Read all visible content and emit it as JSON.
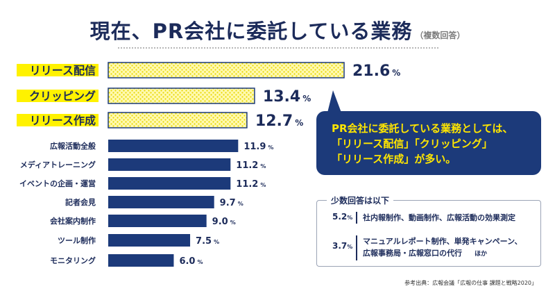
{
  "title": "現在、PR会社に委託している業務",
  "title_note": "（複数回答）",
  "chart_data": {
    "type": "bar",
    "orientation": "horizontal",
    "unit": "%",
    "categories": [
      "リリース配信",
      "クリッピング",
      "リリース作成",
      "広報活動全般",
      "メディアトレーニング",
      "イベントの企画・運営",
      "記者会見",
      "会社案内制作",
      "ツール制作",
      "モニタリング"
    ],
    "values": [
      21.6,
      13.4,
      12.7,
      11.9,
      11.2,
      11.2,
      9.7,
      9.0,
      7.5,
      6.0
    ],
    "value_labels": [
      "21.6",
      "13.4",
      "12.7",
      "11.9",
      "11.2",
      "11.2",
      "9.7",
      "9.0",
      "7.5",
      "6.0"
    ],
    "highlighted": [
      true,
      true,
      true,
      false,
      false,
      false,
      false,
      false,
      false,
      false
    ],
    "xlim": [
      0,
      21.6
    ],
    "grid": false,
    "axes_shown": false
  },
  "colors": {
    "navy": "#1c3a7a",
    "highlight_yellow": "#fff200",
    "highlight_fill": "#fff9b0",
    "callout_text": "#ffe600"
  },
  "callout": {
    "lines": [
      "PR会社に委託している業務としては、",
      "「リリース配信」「クリッピング」",
      "「リリース作成」が多い。"
    ]
  },
  "minor": {
    "title": "少数回答は以下",
    "rows": [
      {
        "pct": "5.2",
        "lines": [
          "社内報制作、動画制作、広報活動の効果測定"
        ],
        "etc": ""
      },
      {
        "pct": "3.7",
        "lines": [
          "マニュアルレポート制作、単発キャンペーン、",
          "広報事務局・広報窓口の代行"
        ],
        "etc": "ほか"
      }
    ]
  },
  "percent_sign": "%",
  "source": "参考出典：広報会議「広報の仕事 課題と戦略2020」"
}
